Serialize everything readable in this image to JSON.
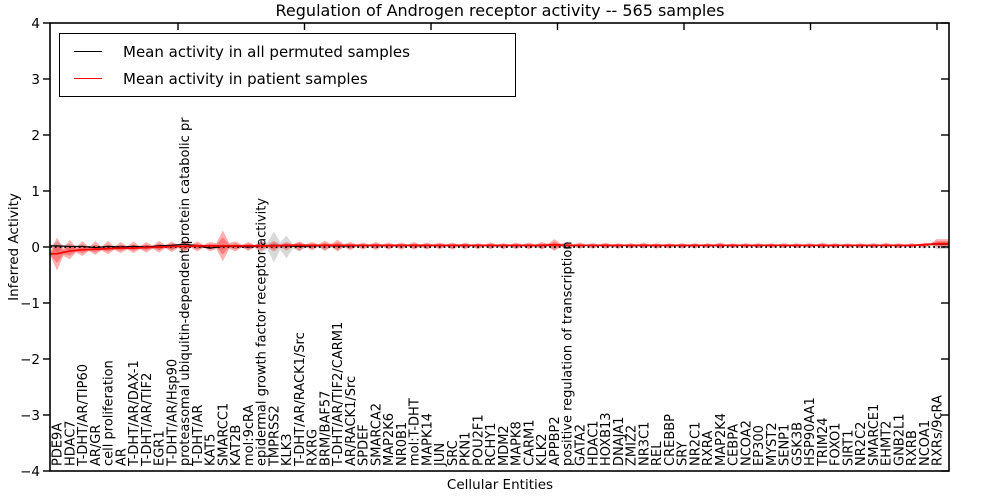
{
  "chart_data": {
    "type": "line",
    "title": "Regulation of Androgen receptor activity -- 565 samples",
    "xlabel": "Cellular Entities",
    "ylabel": "Inferred Activity",
    "ylim": [
      -4,
      4
    ],
    "grid": false,
    "zero_line_style": "dotted",
    "legend_position": "upper left",
    "ytick_values": [
      4,
      3,
      2,
      1,
      0,
      -1,
      -2,
      -3,
      -4
    ],
    "ytick_labels": [
      "4",
      "3",
      "2",
      "1",
      "0",
      "−1",
      "−2",
      "−3",
      "−4"
    ],
    "categories": [
      "PDE9A",
      "HDAC7",
      "T-DHT/AR/TIP60",
      "AR/GR",
      "cell proliferation",
      "AR",
      "T-DHT/AR/DAX-1",
      "T-DHT/AR/TIF2",
      "EGR1",
      "T-DHT/AR/Hsp90",
      "proteasomal ubiquitin-dependent protein catabolic pr",
      "T-DHT/AR",
      "KAT5",
      "SMARCC1",
      "KAT2B",
      "mol:9cRA",
      "epidermal growth factor receptor activity",
      "TMPRSS2",
      "KLK3",
      "T-DHT/AR/RACK1/Src",
      "RXRG",
      "BRM/BAF57",
      "T-DHT/AR/TIF2/CARM1",
      "AR/RACK1/Src",
      "SPDEF",
      "SMARCA2",
      "MAP2K6",
      "NR0B1",
      "mol:T-DHT",
      "MAPK14",
      "JUN",
      "SRC",
      "PKN1",
      "POU2F1",
      "RCHY1",
      "MDM2",
      "MAPK8",
      "CARM1",
      "KLK2",
      "APPBP2",
      "positive regulation of transcription",
      "GATA2",
      "HDAC1",
      "HOXB13",
      "DNAJA1",
      "ZMIZ2",
      "NR3C1",
      "REL",
      "CREBBP",
      "SRY",
      "NR2C1",
      "RXRA",
      "MAP2K4",
      "CEBPA",
      "NCOA2",
      "EP300",
      "MYST2",
      "SENP1",
      "GSK3B",
      "HSP90AA1",
      "TRIM24",
      "FOXO1",
      "SIRT1",
      "NR2C2",
      "SMARCE1",
      "EHMT2",
      "GNB2L1",
      "RXRB",
      "NCOA1",
      "RXRs/9cRA"
    ],
    "series": [
      {
        "name": "Mean activity in all permuted samples",
        "color": "#000000",
        "values": [
          0.02,
          0.01,
          0.01,
          -0.01,
          0.01,
          0.0,
          0.01,
          0.0,
          0.02,
          0.03,
          0.05,
          0.02,
          -0.02,
          0.01,
          0.01,
          0.0,
          0.02,
          0.03,
          0.02,
          0.01,
          0.02,
          0.03,
          0.02,
          0.02,
          0.03,
          0.03,
          0.03,
          0.03,
          0.03,
          0.03,
          0.03,
          0.03,
          0.03,
          0.03,
          0.03,
          0.03,
          0.03,
          0.03,
          0.03,
          0.04,
          0.03,
          0.03,
          0.03,
          0.03,
          0.03,
          0.03,
          0.03,
          0.03,
          0.03,
          0.03,
          0.03,
          0.03,
          0.03,
          0.03,
          0.03,
          0.03,
          0.03,
          0.03,
          0.03,
          0.03,
          0.03,
          0.03,
          0.03,
          0.03,
          0.03,
          0.03,
          0.03,
          0.03,
          0.04,
          0.05
        ],
        "band": {
          "color": "#808080",
          "upper": [
            0.1,
            0.06,
            0.05,
            0.04,
            0.04,
            0.04,
            0.04,
            0.04,
            0.05,
            0.06,
            0.09,
            0.06,
            0.04,
            0.05,
            0.04,
            0.05,
            0.1,
            0.28,
            0.2,
            0.08,
            0.04,
            0.06,
            0.06,
            0.04,
            0.03,
            0.03,
            0.03,
            0.03,
            0.03,
            0.03,
            0.03,
            0.03,
            0.03,
            0.03,
            0.03,
            0.03,
            0.03,
            0.03,
            0.04,
            0.06,
            0.04,
            0.03,
            0.03,
            0.03,
            0.03,
            0.02,
            0.02,
            0.03,
            0.02,
            0.02,
            0.02,
            0.02,
            0.03,
            0.02,
            0.02,
            0.02,
            0.02,
            0.02,
            0.02,
            0.02,
            0.03,
            0.02,
            0.02,
            0.02,
            0.02,
            0.02,
            0.02,
            0.02,
            0.03,
            0.04
          ],
          "lower": [
            -0.1,
            -0.06,
            -0.05,
            -0.04,
            -0.04,
            -0.04,
            -0.04,
            -0.04,
            -0.05,
            -0.06,
            -0.07,
            -0.05,
            -0.04,
            -0.05,
            -0.04,
            -0.05,
            -0.1,
            -0.28,
            -0.2,
            -0.08,
            -0.04,
            -0.06,
            -0.06,
            -0.04,
            -0.03,
            -0.03,
            -0.03,
            -0.03,
            -0.03,
            -0.03,
            -0.03,
            -0.03,
            -0.03,
            -0.03,
            -0.03,
            -0.03,
            -0.03,
            -0.03,
            -0.04,
            -0.06,
            -0.04,
            -0.03,
            -0.03,
            -0.03,
            -0.03,
            -0.02,
            -0.02,
            -0.03,
            -0.02,
            -0.02,
            -0.02,
            -0.02,
            -0.03,
            -0.02,
            -0.02,
            -0.02,
            -0.02,
            -0.02,
            -0.02,
            -0.02,
            -0.03,
            -0.02,
            -0.02,
            -0.02,
            -0.02,
            -0.02,
            -0.02,
            -0.02,
            -0.03,
            -0.04
          ]
        }
      },
      {
        "name": "Mean activity in patient samples",
        "color": "#ff0000",
        "values": [
          -0.12,
          -0.07,
          -0.05,
          -0.04,
          -0.03,
          -0.02,
          -0.02,
          -0.01,
          0.0,
          0.01,
          0.01,
          0.02,
          0.02,
          0.02,
          0.02,
          0.02,
          0.02,
          0.02,
          0.03,
          0.03,
          0.03,
          0.03,
          0.03,
          0.03,
          0.03,
          0.03,
          0.03,
          0.03,
          0.03,
          0.03,
          0.03,
          0.03,
          0.03,
          0.03,
          0.03,
          0.03,
          0.03,
          0.03,
          0.03,
          0.04,
          0.03,
          0.03,
          0.03,
          0.03,
          0.03,
          0.03,
          0.03,
          0.03,
          0.03,
          0.03,
          0.03,
          0.03,
          0.03,
          0.03,
          0.03,
          0.03,
          0.03,
          0.03,
          0.03,
          0.03,
          0.03,
          0.03,
          0.03,
          0.03,
          0.03,
          0.03,
          0.03,
          0.03,
          0.04,
          0.06
        ],
        "band": {
          "color": "#ff0000",
          "upper": [
            0.17,
            0.13,
            0.11,
            0.1,
            0.11,
            0.09,
            0.1,
            0.09,
            0.11,
            0.1,
            0.12,
            0.1,
            0.09,
            0.3,
            0.1,
            0.09,
            0.1,
            0.11,
            0.09,
            0.1,
            0.09,
            0.11,
            0.13,
            0.09,
            0.08,
            0.09,
            0.08,
            0.08,
            0.09,
            0.08,
            0.08,
            0.08,
            0.08,
            0.07,
            0.08,
            0.07,
            0.08,
            0.08,
            0.09,
            0.14,
            0.09,
            0.08,
            0.07,
            0.08,
            0.07,
            0.07,
            0.08,
            0.07,
            0.07,
            0.07,
            0.07,
            0.07,
            0.08,
            0.07,
            0.07,
            0.07,
            0.07,
            0.07,
            0.07,
            0.07,
            0.08,
            0.07,
            0.07,
            0.07,
            0.07,
            0.08,
            0.07,
            0.07,
            0.08,
            0.14
          ],
          "lower": [
            -0.42,
            -0.22,
            -0.16,
            -0.14,
            -0.13,
            -0.11,
            -0.11,
            -0.1,
            -0.1,
            -0.09,
            -0.1,
            -0.08,
            -0.08,
            -0.26,
            -0.08,
            -0.07,
            -0.07,
            -0.08,
            -0.06,
            -0.07,
            -0.06,
            -0.07,
            -0.08,
            -0.06,
            -0.05,
            -0.06,
            -0.05,
            -0.05,
            -0.05,
            -0.05,
            -0.04,
            -0.05,
            -0.04,
            -0.04,
            -0.04,
            -0.04,
            -0.04,
            -0.04,
            -0.04,
            -0.07,
            -0.04,
            -0.03,
            -0.03,
            -0.03,
            -0.03,
            -0.03,
            -0.03,
            -0.03,
            -0.03,
            -0.03,
            -0.03,
            -0.02,
            -0.03,
            -0.02,
            -0.02,
            -0.02,
            -0.02,
            -0.02,
            -0.02,
            -0.02,
            -0.02,
            -0.02,
            -0.02,
            -0.02,
            -0.02,
            -0.02,
            -0.02,
            -0.02,
            -0.01,
            0.0
          ]
        }
      }
    ]
  }
}
